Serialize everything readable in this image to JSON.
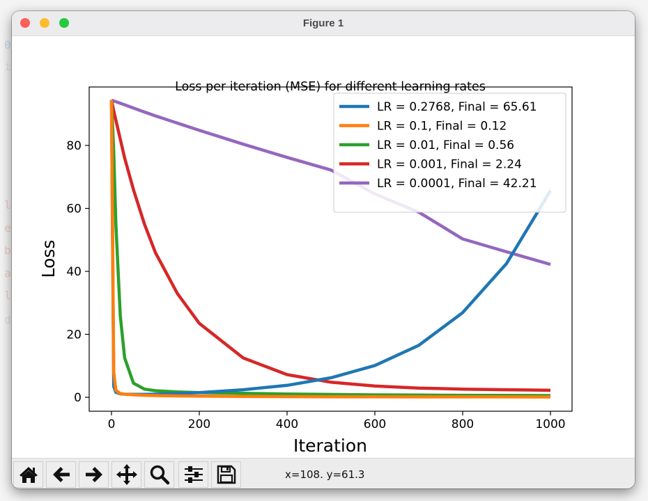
{
  "window": {
    "title": "Figure 1",
    "buttons": [
      "close",
      "minimize",
      "maximize"
    ]
  },
  "background_terminal": {
    "visible_chars": [
      "0",
      "i",
      "l",
      "e",
      "b",
      "a",
      "l",
      "d"
    ]
  },
  "toolbar": {
    "buttons": [
      {
        "name": "home",
        "icon": "home-icon"
      },
      {
        "name": "back",
        "icon": "arrow-left-icon"
      },
      {
        "name": "forward",
        "icon": "arrow-right-icon"
      },
      {
        "name": "pan",
        "icon": "move-icon"
      },
      {
        "name": "zoom",
        "icon": "magnifier-icon"
      },
      {
        "name": "configure-subplots",
        "icon": "sliders-icon"
      },
      {
        "name": "save",
        "icon": "floppy-disk-icon"
      }
    ],
    "coordinates": "x=108. y=61.3"
  },
  "chart_data": {
    "type": "line",
    "title": "Loss per iteration (MSE) for different learning rates",
    "xlabel": "Iteration",
    "ylabel": "Loss",
    "xlim": [
      -50,
      1050
    ],
    "ylim": [
      -4.5,
      98
    ],
    "xticks": [
      0,
      200,
      400,
      600,
      800,
      1000
    ],
    "yticks": [
      0,
      20,
      40,
      60,
      80
    ],
    "grid": false,
    "legend_position": "upper right",
    "x": [
      0,
      5,
      10,
      20,
      30,
      50,
      75,
      100,
      150,
      200,
      300,
      400,
      500,
      600,
      700,
      800,
      900,
      1000
    ],
    "series": [
      {
        "name": "LR = 0.2768, Final = 65.61",
        "color": "#1f77b4",
        "values": [
          94.4,
          3.5,
          1.6,
          1.1,
          1.0,
          0.95,
          0.95,
          1.0,
          1.2,
          1.5,
          2.4,
          3.8,
          6.2,
          10.1,
          16.5,
          26.9,
          42.5,
          65.61
        ]
      },
      {
        "name": "LR = 0.1, Final = 0.12",
        "color": "#ff7f0e",
        "values": [
          94.4,
          8.0,
          2.2,
          1.2,
          1.0,
          0.8,
          0.65,
          0.55,
          0.45,
          0.38,
          0.28,
          0.22,
          0.18,
          0.16,
          0.14,
          0.13,
          0.125,
          0.12
        ]
      },
      {
        "name": "LR = 0.01, Final = 0.56",
        "color": "#2ca02c",
        "values": [
          94.4,
          78.0,
          55.0,
          26.0,
          12.5,
          4.5,
          2.6,
          2.1,
          1.7,
          1.5,
          1.25,
          1.05,
          0.9,
          0.78,
          0.7,
          0.64,
          0.6,
          0.56
        ]
      },
      {
        "name": "LR = 0.001, Final = 2.24",
        "color": "#d62728",
        "values": [
          94.4,
          91.0,
          88.0,
          82.0,
          76.0,
          66.0,
          55.0,
          46.0,
          33.0,
          23.5,
          12.5,
          7.2,
          4.8,
          3.6,
          2.95,
          2.6,
          2.4,
          2.24
        ]
      },
      {
        "name": "LR = 0.0001, Final = 42.21",
        "color": "#9467bd",
        "values": [
          94.4,
          94.1,
          93.9,
          93.4,
          92.9,
          91.9,
          90.6,
          89.4,
          87.1,
          84.8,
          80.4,
          76.2,
          72.2,
          64.6,
          58.8,
          50.3,
          46.2,
          42.21
        ]
      }
    ]
  }
}
